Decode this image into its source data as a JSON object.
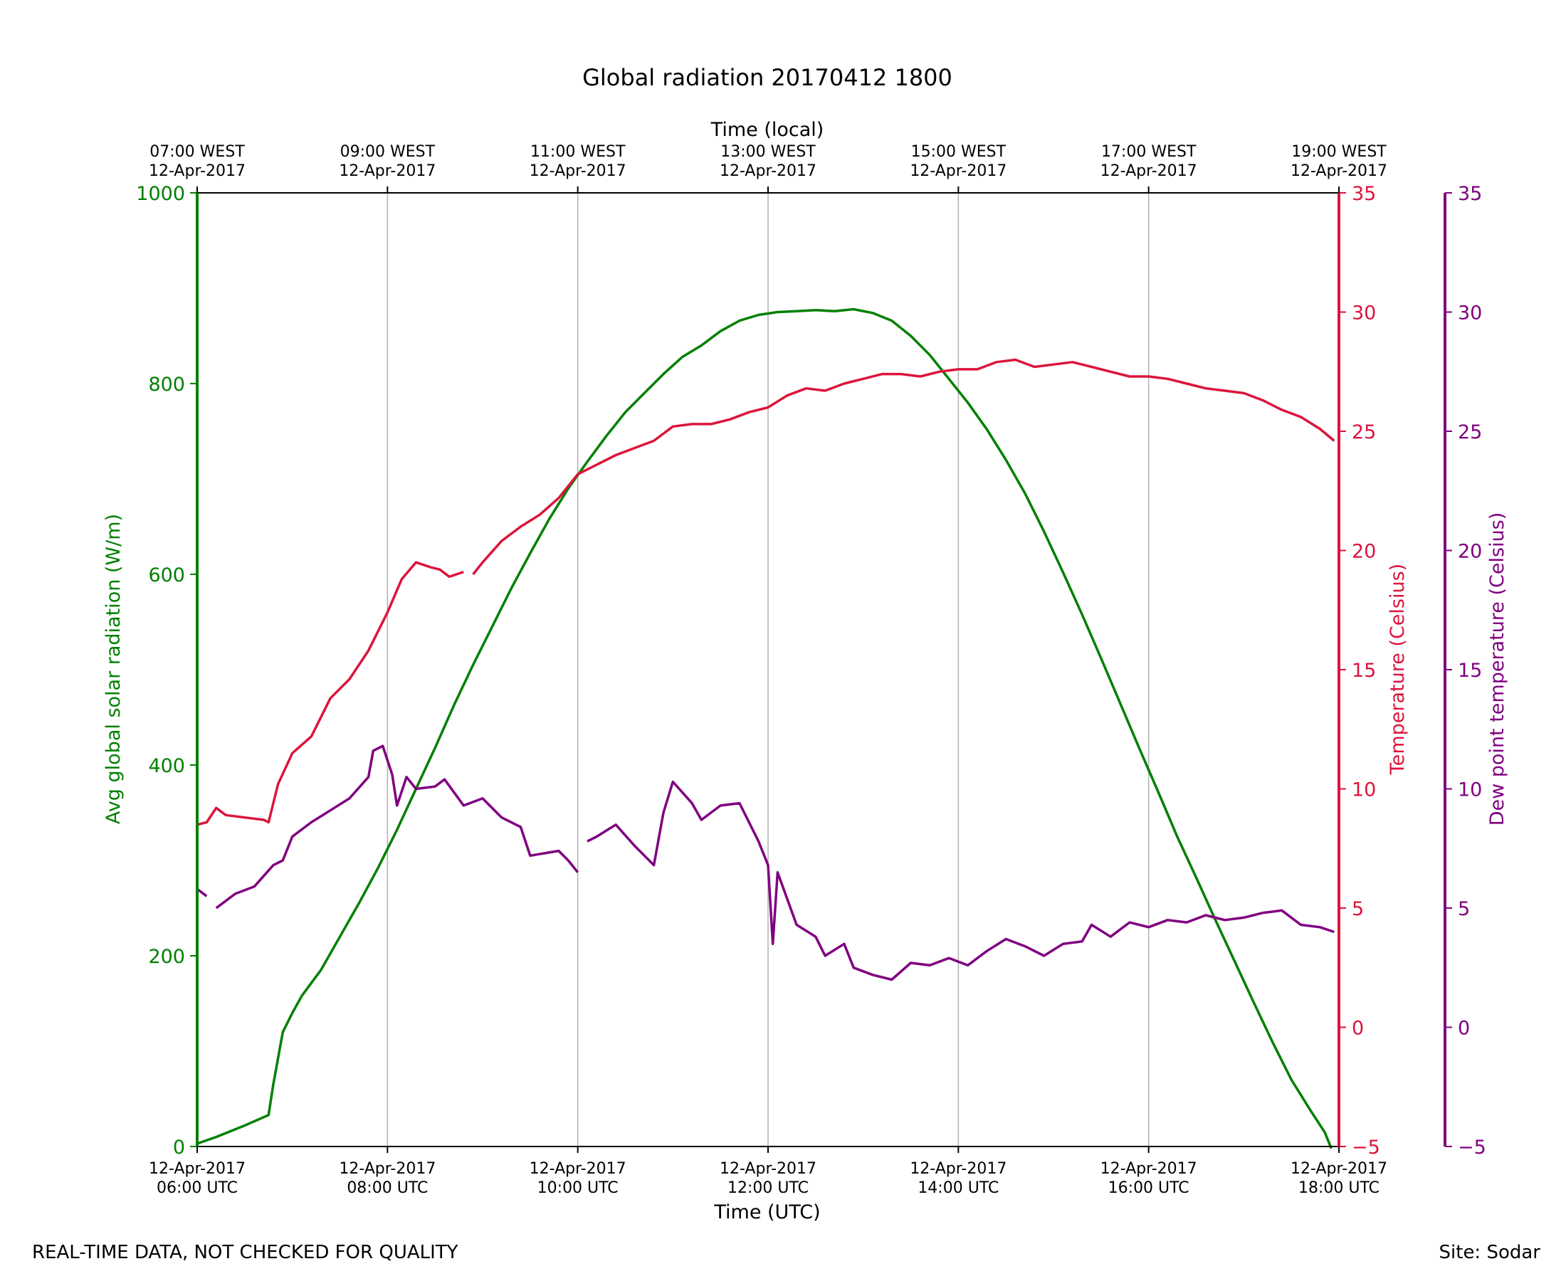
{
  "footer": {
    "disclaimer": "REAL-TIME DATA, NOT CHECKED FOR QUALITY",
    "site": "Site: Sodar"
  },
  "chart_data": {
    "type": "line",
    "title": "Global radiation 20170412 1800",
    "xlabel": "Time (UTC)",
    "x2label": "Time (local)",
    "xlim_hours_utc": [
      6,
      18
    ],
    "grid": "vertical",
    "x_ticks_bottom": [
      {
        "hour": 6,
        "line1": "12-Apr-2017",
        "line2": "06:00 UTC"
      },
      {
        "hour": 8,
        "line1": "12-Apr-2017",
        "line2": "08:00 UTC"
      },
      {
        "hour": 10,
        "line1": "12-Apr-2017",
        "line2": "10:00 UTC"
      },
      {
        "hour": 12,
        "line1": "12-Apr-2017",
        "line2": "12:00 UTC"
      },
      {
        "hour": 14,
        "line1": "12-Apr-2017",
        "line2": "14:00 UTC"
      },
      {
        "hour": 16,
        "line1": "12-Apr-2017",
        "line2": "16:00 UTC"
      },
      {
        "hour": 18,
        "line1": "12-Apr-2017",
        "line2": "18:00 UTC"
      }
    ],
    "x_ticks_top": [
      {
        "hour": 6,
        "line1": "07:00 WEST",
        "line2": "12-Apr-2017"
      },
      {
        "hour": 8,
        "line1": "09:00 WEST",
        "line2": "12-Apr-2017"
      },
      {
        "hour": 10,
        "line1": "11:00 WEST",
        "line2": "12-Apr-2017"
      },
      {
        "hour": 12,
        "line1": "13:00 WEST",
        "line2": "12-Apr-2017"
      },
      {
        "hour": 14,
        "line1": "15:00 WEST",
        "line2": "12-Apr-2017"
      },
      {
        "hour": 16,
        "line1": "17:00 WEST",
        "line2": "12-Apr-2017"
      },
      {
        "hour": 18,
        "line1": "19:00 WEST",
        "line2": "12-Apr-2017"
      }
    ],
    "axes": {
      "radiation": {
        "label": "Avg global solar radiation (W/m)",
        "ylim": [
          0,
          1000
        ],
        "ticks": [
          0,
          200,
          400,
          600,
          800,
          1000
        ],
        "color": "#008000"
      },
      "temperature": {
        "label": "Temperature (Celsius)",
        "ylim": [
          -5,
          35
        ],
        "ticks": [
          -5,
          0,
          5,
          10,
          15,
          20,
          25,
          30,
          35
        ],
        "color": "#dc143c"
      },
      "dewpoint": {
        "label": "Dew point temperature (Celsius)",
        "ylim": [
          -5,
          35
        ],
        "ticks": [
          -5,
          0,
          5,
          10,
          15,
          20,
          25,
          30,
          35
        ],
        "color": "#800080"
      }
    },
    "series": [
      {
        "name": "Avg global solar radiation",
        "axis": "radiation",
        "color": "#008000",
        "points": [
          [
            6.0,
            3
          ],
          [
            6.2,
            10
          ],
          [
            6.5,
            22
          ],
          [
            6.75,
            33
          ],
          [
            6.8,
            65
          ],
          [
            6.9,
            120
          ],
          [
            7.0,
            140
          ],
          [
            7.1,
            158
          ],
          [
            7.3,
            185
          ],
          [
            7.5,
            220
          ],
          [
            7.7,
            255
          ],
          [
            7.9,
            292
          ],
          [
            8.1,
            332
          ],
          [
            8.3,
            375
          ],
          [
            8.5,
            418
          ],
          [
            8.7,
            463
          ],
          [
            8.9,
            505
          ],
          [
            9.1,
            545
          ],
          [
            9.3,
            585
          ],
          [
            9.5,
            622
          ],
          [
            9.7,
            658
          ],
          [
            9.9,
            690
          ],
          [
            10.1,
            718
          ],
          [
            10.3,
            745
          ],
          [
            10.5,
            770
          ],
          [
            10.7,
            790
          ],
          [
            10.9,
            810
          ],
          [
            11.1,
            828
          ],
          [
            11.3,
            840
          ],
          [
            11.5,
            855
          ],
          [
            11.7,
            866
          ],
          [
            11.9,
            872
          ],
          [
            12.1,
            875
          ],
          [
            12.3,
            876
          ],
          [
            12.5,
            877
          ],
          [
            12.7,
            876
          ],
          [
            12.9,
            878
          ],
          [
            13.1,
            874
          ],
          [
            13.3,
            866
          ],
          [
            13.5,
            850
          ],
          [
            13.7,
            830
          ],
          [
            13.9,
            805
          ],
          [
            14.1,
            780
          ],
          [
            14.3,
            752
          ],
          [
            14.5,
            720
          ],
          [
            14.7,
            685
          ],
          [
            14.9,
            645
          ],
          [
            15.1,
            602
          ],
          [
            15.3,
            558
          ],
          [
            15.5,
            512
          ],
          [
            15.7,
            465
          ],
          [
            15.9,
            418
          ],
          [
            16.1,
            372
          ],
          [
            16.3,
            325
          ],
          [
            16.5,
            282
          ],
          [
            16.7,
            238
          ],
          [
            16.9,
            195
          ],
          [
            17.1,
            152
          ],
          [
            17.3,
            110
          ],
          [
            17.5,
            70
          ],
          [
            17.7,
            38
          ],
          [
            17.85,
            15
          ],
          [
            17.92,
            -2
          ]
        ],
        "gaps_after_hour": [
          17.92
        ]
      },
      {
        "name": "Temperature",
        "axis": "temperature",
        "color": "#dc143c",
        "points": [
          [
            6.0,
            8.5
          ],
          [
            6.1,
            8.6
          ],
          [
            6.2,
            9.2
          ],
          [
            6.3,
            8.9
          ],
          [
            6.5,
            8.8
          ],
          [
            6.7,
            8.7
          ],
          [
            6.75,
            8.6
          ],
          [
            6.85,
            10.2
          ],
          [
            7.0,
            11.5
          ],
          [
            7.2,
            12.2
          ],
          [
            7.4,
            13.8
          ],
          [
            7.6,
            14.6
          ],
          [
            7.8,
            15.8
          ],
          [
            8.0,
            17.4
          ],
          [
            8.15,
            18.8
          ],
          [
            8.3,
            19.5
          ],
          [
            8.45,
            19.3
          ],
          [
            8.55,
            19.2
          ],
          [
            8.65,
            18.9
          ],
          [
            8.8,
            19.1
          ],
          [
            8.9,
            19.0
          ],
          [
            9.0,
            19.5
          ],
          [
            9.2,
            20.4
          ],
          [
            9.4,
            21.0
          ],
          [
            9.6,
            21.5
          ],
          [
            9.8,
            22.2
          ],
          [
            10.0,
            23.2
          ],
          [
            10.2,
            23.6
          ],
          [
            10.4,
            24.0
          ],
          [
            10.6,
            24.3
          ],
          [
            10.8,
            24.6
          ],
          [
            11.0,
            25.2
          ],
          [
            11.2,
            25.3
          ],
          [
            11.4,
            25.3
          ],
          [
            11.6,
            25.5
          ],
          [
            11.8,
            25.8
          ],
          [
            12.0,
            26.0
          ],
          [
            12.2,
            26.5
          ],
          [
            12.4,
            26.8
          ],
          [
            12.6,
            26.7
          ],
          [
            12.8,
            27.0
          ],
          [
            13.0,
            27.2
          ],
          [
            13.2,
            27.4
          ],
          [
            13.4,
            27.4
          ],
          [
            13.6,
            27.3
          ],
          [
            13.8,
            27.5
          ],
          [
            14.0,
            27.6
          ],
          [
            14.2,
            27.6
          ],
          [
            14.4,
            27.9
          ],
          [
            14.6,
            28.0
          ],
          [
            14.8,
            27.7
          ],
          [
            15.0,
            27.8
          ],
          [
            15.2,
            27.9
          ],
          [
            15.4,
            27.7
          ],
          [
            15.6,
            27.5
          ],
          [
            15.8,
            27.3
          ],
          [
            16.0,
            27.3
          ],
          [
            16.2,
            27.2
          ],
          [
            16.4,
            27.0
          ],
          [
            16.6,
            26.8
          ],
          [
            16.8,
            26.7
          ],
          [
            17.0,
            26.6
          ],
          [
            17.2,
            26.3
          ],
          [
            17.4,
            25.9
          ],
          [
            17.6,
            25.6
          ],
          [
            17.8,
            25.1
          ],
          [
            17.95,
            24.6
          ]
        ],
        "gaps_after_hour": [
          8.8
        ]
      },
      {
        "name": "Dew point temperature",
        "axis": "dewpoint",
        "color": "#800080",
        "points": [
          [
            6.0,
            5.8
          ],
          [
            6.1,
            5.5
          ],
          [
            6.2,
            5.0
          ],
          [
            6.4,
            5.6
          ],
          [
            6.6,
            5.9
          ],
          [
            6.8,
            6.8
          ],
          [
            6.9,
            7.0
          ],
          [
            7.0,
            8.0
          ],
          [
            7.2,
            8.6
          ],
          [
            7.4,
            9.1
          ],
          [
            7.6,
            9.6
          ],
          [
            7.8,
            10.5
          ],
          [
            7.85,
            11.6
          ],
          [
            7.95,
            11.8
          ],
          [
            8.05,
            10.6
          ],
          [
            8.1,
            9.3
          ],
          [
            8.2,
            10.5
          ],
          [
            8.3,
            10.0
          ],
          [
            8.5,
            10.1
          ],
          [
            8.6,
            10.4
          ],
          [
            8.8,
            9.3
          ],
          [
            9.0,
            9.6
          ],
          [
            9.2,
            8.8
          ],
          [
            9.4,
            8.4
          ],
          [
            9.5,
            7.2
          ],
          [
            9.8,
            7.4
          ],
          [
            9.9,
            7.0
          ],
          [
            10.0,
            6.5
          ],
          [
            10.1,
            7.8
          ],
          [
            10.2,
            8.0
          ],
          [
            10.4,
            8.5
          ],
          [
            10.6,
            7.6
          ],
          [
            10.8,
            6.8
          ],
          [
            10.9,
            9.0
          ],
          [
            11.0,
            10.3
          ],
          [
            11.2,
            9.4
          ],
          [
            11.3,
            8.7
          ],
          [
            11.5,
            9.3
          ],
          [
            11.7,
            9.4
          ],
          [
            11.9,
            7.8
          ],
          [
            12.0,
            6.8
          ],
          [
            12.05,
            3.5
          ],
          [
            12.1,
            6.5
          ],
          [
            12.3,
            4.3
          ],
          [
            12.5,
            3.8
          ],
          [
            12.6,
            3.0
          ],
          [
            12.8,
            3.5
          ],
          [
            12.9,
            2.5
          ],
          [
            13.1,
            2.2
          ],
          [
            13.3,
            2.0
          ],
          [
            13.5,
            2.7
          ],
          [
            13.7,
            2.6
          ],
          [
            13.9,
            2.9
          ],
          [
            14.1,
            2.6
          ],
          [
            14.3,
            3.2
          ],
          [
            14.5,
            3.7
          ],
          [
            14.7,
            3.4
          ],
          [
            14.9,
            3.0
          ],
          [
            15.1,
            3.5
          ],
          [
            15.3,
            3.6
          ],
          [
            15.4,
            4.3
          ],
          [
            15.6,
            3.8
          ],
          [
            15.8,
            4.4
          ],
          [
            16.0,
            4.2
          ],
          [
            16.2,
            4.5
          ],
          [
            16.4,
            4.4
          ],
          [
            16.6,
            4.7
          ],
          [
            16.8,
            4.5
          ],
          [
            17.0,
            4.6
          ],
          [
            17.2,
            4.8
          ],
          [
            17.4,
            4.9
          ],
          [
            17.6,
            4.3
          ],
          [
            17.8,
            4.2
          ],
          [
            17.95,
            4.0
          ]
        ],
        "gaps_after_hour": [
          6.1,
          10.0
        ]
      }
    ]
  }
}
